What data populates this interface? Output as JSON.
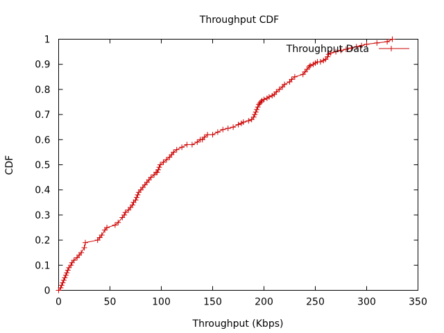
{
  "chart_data": {
    "type": "line",
    "title": "Throughput CDF",
    "xlabel": "Throughput (Kbps)",
    "ylabel": "CDF",
    "xlim": [
      0,
      350
    ],
    "ylim": [
      0,
      1
    ],
    "xticks": [
      0,
      50,
      100,
      150,
      200,
      250,
      300,
      350
    ],
    "yticks": [
      0,
      0.1,
      0.2,
      0.3,
      0.4,
      0.5,
      0.6,
      0.7,
      0.8,
      0.9,
      1
    ],
    "xtick_labels": [
      "0",
      "50",
      "100",
      "150",
      "200",
      "250",
      "300",
      "350"
    ],
    "ytick_labels": [
      "0",
      "0.1",
      "0.2",
      "0.3",
      "0.4",
      "0.5",
      "0.6",
      "0.7",
      "0.8",
      "0.9",
      "1"
    ],
    "grid": false,
    "legend_position": "top-right",
    "color": "#cc0000",
    "series": [
      {
        "name": "Throughput Data",
        "x": [
          0,
          2,
          3,
          4,
          5,
          6,
          7,
          8,
          9,
          10,
          12,
          13,
          15,
          18,
          20,
          22,
          25,
          26,
          38,
          40,
          42,
          45,
          47,
          55,
          58,
          62,
          64,
          65,
          68,
          70,
          72,
          73,
          75,
          76,
          77,
          78,
          80,
          82,
          84,
          86,
          88,
          90,
          93,
          95,
          96,
          97,
          98,
          99,
          102,
          105,
          108,
          110,
          112,
          115,
          120,
          125,
          130,
          135,
          138,
          140,
          142,
          145,
          150,
          155,
          160,
          165,
          170,
          175,
          178,
          180,
          185,
          188,
          190,
          191,
          192,
          193,
          194,
          195,
          196,
          197,
          198,
          200,
          203,
          205,
          208,
          210,
          212,
          215,
          218,
          220,
          225,
          227,
          230,
          238,
          240,
          242,
          244,
          245,
          248,
          250,
          252,
          255,
          258,
          260,
          262,
          263,
          265,
          270,
          275,
          280,
          285,
          290,
          295,
          300,
          310,
          320,
          325
        ],
        "y": [
          0.0,
          0.01,
          0.02,
          0.03,
          0.04,
          0.05,
          0.06,
          0.07,
          0.08,
          0.09,
          0.1,
          0.11,
          0.12,
          0.13,
          0.14,
          0.15,
          0.17,
          0.19,
          0.2,
          0.21,
          0.22,
          0.24,
          0.25,
          0.26,
          0.27,
          0.29,
          0.3,
          0.31,
          0.32,
          0.33,
          0.34,
          0.35,
          0.36,
          0.37,
          0.38,
          0.39,
          0.4,
          0.41,
          0.42,
          0.43,
          0.44,
          0.45,
          0.46,
          0.47,
          0.47,
          0.48,
          0.49,
          0.5,
          0.51,
          0.52,
          0.53,
          0.54,
          0.55,
          0.56,
          0.57,
          0.58,
          0.58,
          0.59,
          0.6,
          0.6,
          0.61,
          0.62,
          0.62,
          0.63,
          0.64,
          0.645,
          0.65,
          0.66,
          0.665,
          0.67,
          0.675,
          0.68,
          0.69,
          0.7,
          0.71,
          0.72,
          0.73,
          0.74,
          0.745,
          0.75,
          0.755,
          0.76,
          0.765,
          0.77,
          0.775,
          0.78,
          0.79,
          0.8,
          0.81,
          0.82,
          0.83,
          0.84,
          0.85,
          0.86,
          0.87,
          0.88,
          0.89,
          0.895,
          0.9,
          0.905,
          0.91,
          0.91,
          0.915,
          0.92,
          0.93,
          0.94,
          0.945,
          0.95,
          0.955,
          0.96,
          0.965,
          0.97,
          0.975,
          0.98,
          0.985,
          0.99,
          1.0
        ]
      }
    ]
  }
}
